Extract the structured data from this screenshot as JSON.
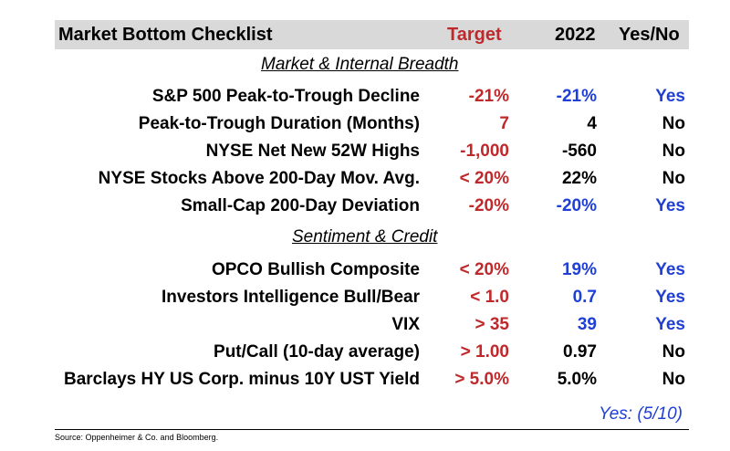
{
  "header": {
    "title": "Market Bottom Checklist",
    "target": "Target",
    "year": "2022",
    "yes_no": "Yes/No"
  },
  "sections": [
    {
      "title": "Market & Internal Breadth",
      "rows": [
        {
          "label": "S&P 500 Peak-to-Trough Decline",
          "target": "-21%",
          "value": "-21%",
          "value_color": "blue",
          "answer": "Yes"
        },
        {
          "label": "Peak-to-Trough Duration (Months)",
          "target": "7",
          "value": "4",
          "value_color": "black",
          "answer": "No"
        },
        {
          "label": "NYSE Net New 52W Highs",
          "target": "-1,000",
          "value": "-560",
          "value_color": "black",
          "answer": "No"
        },
        {
          "label": "NYSE Stocks Above 200-Day Mov. Avg.",
          "target": "< 20%",
          "value": "22%",
          "value_color": "black",
          "answer": "No"
        },
        {
          "label": "Small-Cap 200-Day Deviation",
          "target": "-20%",
          "value": "-20%",
          "value_color": "blue",
          "answer": "Yes"
        }
      ]
    },
    {
      "title": "Sentiment & Credit",
      "rows": [
        {
          "label": "OPCO Bullish Composite",
          "target": "< 20%",
          "value": "19%",
          "value_color": "blue",
          "answer": "Yes"
        },
        {
          "label": "Investors Intelligence Bull/Bear",
          "target": "< 1.0",
          "value": "0.7",
          "value_color": "blue",
          "answer": "Yes"
        },
        {
          "label": "VIX",
          "target": "> 35",
          "value": "39",
          "value_color": "blue",
          "answer": "Yes"
        },
        {
          "label": "Put/Call (10-day average)",
          "target": "> 1.00",
          "value": "0.97",
          "value_color": "black",
          "answer": "No"
        },
        {
          "label": "Barclays HY US Corp. minus 10Y UST Yield",
          "target": "> 5.0%",
          "value": "5.0%",
          "value_color": "black",
          "answer": "No"
        }
      ]
    }
  ],
  "summary": "Yes: (5/10)",
  "source": "Source: Oppenheimer & Co. and Bloomberg.",
  "colors": {
    "target": "#c0292b",
    "yes_blue": "#1f3fd6",
    "header_bg": "#d9d9d9"
  }
}
